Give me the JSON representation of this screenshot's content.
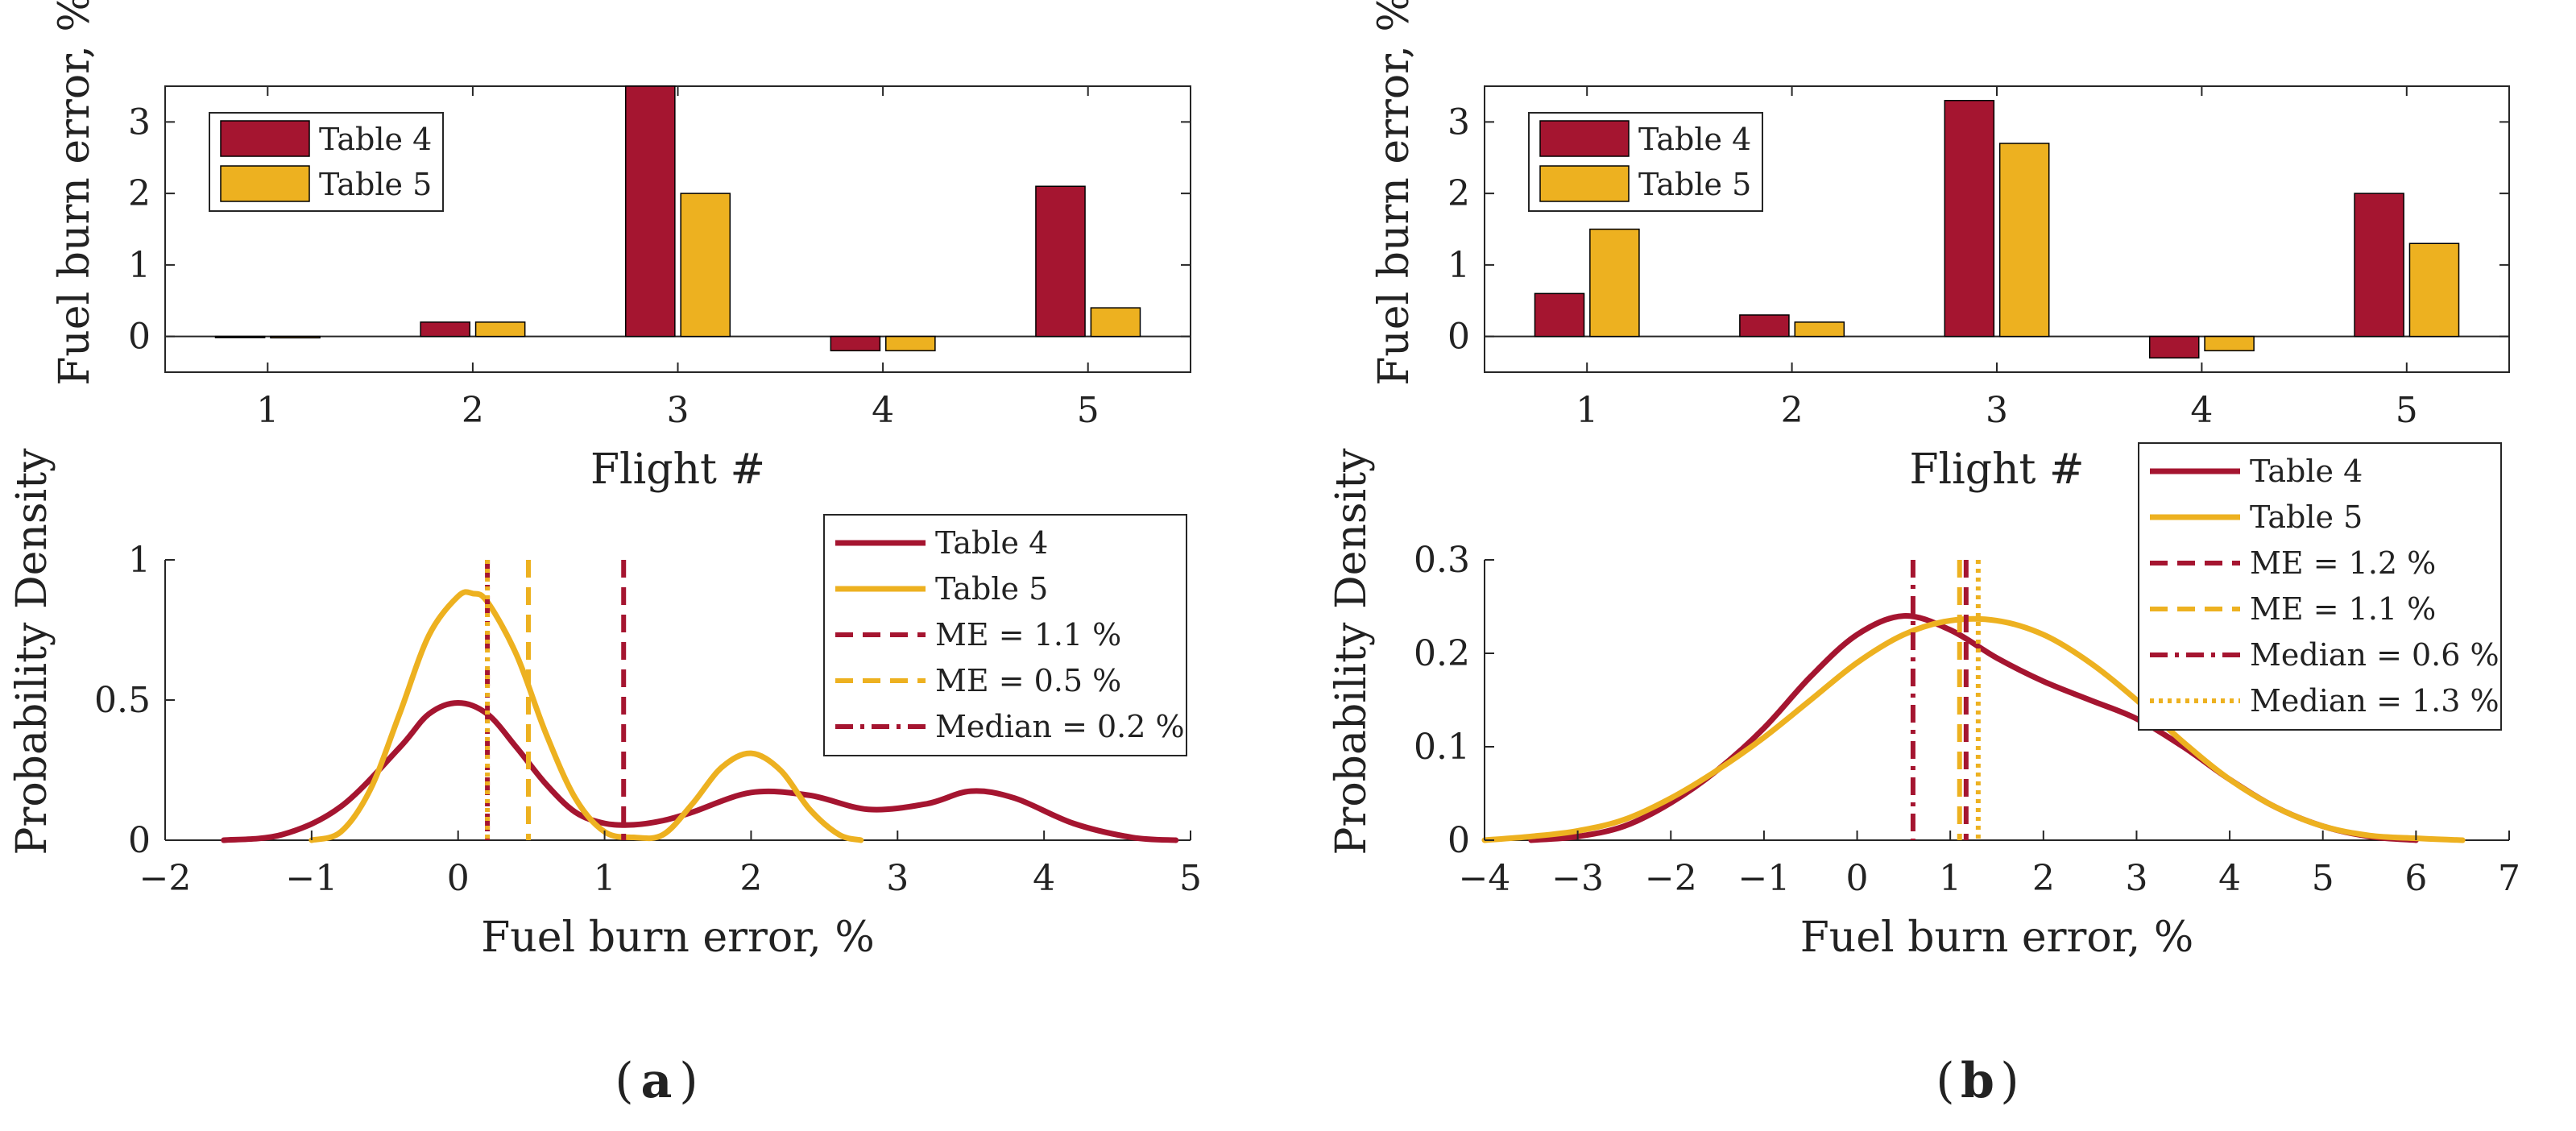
{
  "colors": {
    "table4": "#A51530",
    "table5": "#EDB120",
    "axis": "#262626"
  },
  "captions": {
    "a_letter": "a",
    "b_letter": "b"
  },
  "chart_data": [
    {
      "id": "a_top",
      "type": "bar",
      "panel": "a",
      "categories": [
        "1",
        "2",
        "3",
        "4",
        "5"
      ],
      "series": [
        {
          "name": "Table 4",
          "values": [
            0.0,
            0.2,
            3.5,
            -0.2,
            2.1
          ]
        },
        {
          "name": "Table 5",
          "values": [
            -0.02,
            0.2,
            2.0,
            -0.2,
            0.4
          ]
        }
      ],
      "xlabel": "Flight #",
      "ylabel": "Fuel burn error, %",
      "ylim": [
        -0.5,
        3.5
      ],
      "yticks": [
        "0",
        "1",
        "2",
        "3"
      ],
      "legend": [
        "Table 4",
        "Table 5"
      ],
      "legend_position": "top-left"
    },
    {
      "id": "b_top",
      "type": "bar",
      "panel": "b",
      "categories": [
        "1",
        "2",
        "3",
        "4",
        "5"
      ],
      "series": [
        {
          "name": "Table 4",
          "values": [
            0.6,
            0.3,
            3.3,
            -0.3,
            2.0
          ]
        },
        {
          "name": "Table 5",
          "values": [
            1.5,
            0.2,
            2.7,
            -0.2,
            1.3
          ]
        }
      ],
      "xlabel": "Flight #",
      "ylabel": "Fuel burn error, %",
      "ylim": [
        -0.5,
        3.5
      ],
      "yticks": [
        "0",
        "1",
        "2",
        "3"
      ],
      "legend": [
        "Table 4",
        "Table 5"
      ],
      "legend_position": "top-left"
    },
    {
      "id": "a_bottom",
      "type": "line",
      "panel": "a",
      "series": [
        {
          "name": "Table 4",
          "x": [
            -1.6,
            -1.2,
            -0.8,
            -0.4,
            -0.2,
            0,
            0.2,
            0.4,
            0.6,
            0.8,
            1.0,
            1.2,
            1.4,
            1.6,
            2.0,
            2.4,
            2.8,
            3.2,
            3.5,
            3.8,
            4.2,
            4.6,
            4.9
          ],
          "y": [
            0.0,
            0.02,
            0.12,
            0.33,
            0.45,
            0.49,
            0.45,
            0.33,
            0.2,
            0.1,
            0.06,
            0.055,
            0.07,
            0.1,
            0.17,
            0.16,
            0.11,
            0.13,
            0.175,
            0.15,
            0.06,
            0.01,
            0.0
          ]
        },
        {
          "name": "Table 5",
          "x": [
            -1.0,
            -0.8,
            -0.6,
            -0.4,
            -0.2,
            0,
            0.1,
            0.2,
            0.4,
            0.6,
            0.8,
            1.0,
            1.2,
            1.4,
            1.6,
            1.8,
            2.0,
            2.2,
            2.4,
            2.6,
            2.75
          ],
          "y": [
            0.0,
            0.03,
            0.18,
            0.45,
            0.73,
            0.87,
            0.88,
            0.85,
            0.66,
            0.38,
            0.15,
            0.03,
            0.01,
            0.02,
            0.13,
            0.26,
            0.31,
            0.25,
            0.11,
            0.02,
            0.0
          ]
        }
      ],
      "vlines": [
        {
          "label": "ME = 1.1 %",
          "x": 1.13,
          "color_key": "table4",
          "style": "dashed"
        },
        {
          "label": "ME = 0.5 %",
          "x": 0.48,
          "color_key": "table5",
          "style": "dashed"
        },
        {
          "label": "Median = 0.2 %",
          "x": 0.2,
          "color_key": "table4",
          "style": "dashdot"
        },
        {
          "x": 0.2,
          "color_key": "table5",
          "style": "dotted"
        }
      ],
      "legend": [
        "Table 4",
        "Table 5",
        "ME = 1.1 %",
        "ME = 0.5 %",
        "Median = 0.2 %"
      ],
      "xlabel": "Fuel burn error, %",
      "ylabel": "Probability Density",
      "xlim": [
        -2,
        5
      ],
      "ylim": [
        0,
        1
      ],
      "xticks": [
        "−2",
        "−1",
        "0",
        "1",
        "2",
        "3",
        "4",
        "5"
      ],
      "yticks": [
        "0",
        "0.5",
        "1"
      ],
      "legend_position": "top-right"
    },
    {
      "id": "b_bottom",
      "type": "line",
      "panel": "b",
      "series": [
        {
          "name": "Table 4",
          "x": [
            -3.5,
            -3,
            -2.5,
            -2,
            -1.5,
            -1,
            -0.5,
            0,
            0.5,
            1.0,
            1.5,
            2.0,
            2.5,
            3.0,
            3.5,
            4.0,
            4.5,
            5.0,
            5.5,
            6.0
          ],
          "y": [
            0.0,
            0.004,
            0.015,
            0.04,
            0.075,
            0.12,
            0.175,
            0.22,
            0.24,
            0.225,
            0.195,
            0.17,
            0.15,
            0.13,
            0.1,
            0.065,
            0.035,
            0.015,
            0.004,
            0.0
          ]
        },
        {
          "name": "Table 5",
          "x": [
            -4.0,
            -3.5,
            -3,
            -2.5,
            -2,
            -1.5,
            -1,
            -0.5,
            0,
            0.5,
            1.0,
            1.5,
            2.0,
            2.5,
            3.0,
            3.5,
            4.0,
            4.5,
            5.0,
            5.5,
            6.0,
            6.5
          ],
          "y": [
            0.0,
            0.004,
            0.01,
            0.022,
            0.045,
            0.075,
            0.11,
            0.15,
            0.19,
            0.22,
            0.235,
            0.235,
            0.22,
            0.19,
            0.15,
            0.105,
            0.065,
            0.035,
            0.015,
            0.005,
            0.002,
            0.0
          ]
        }
      ],
      "vlines": [
        {
          "label": "ME = 1.2 %",
          "x": 1.17,
          "color_key": "table4",
          "style": "dashed"
        },
        {
          "label": "ME = 1.1 %",
          "x": 1.1,
          "color_key": "table5",
          "style": "dashed"
        },
        {
          "label": "Median = 0.6 %",
          "x": 0.6,
          "color_key": "table4",
          "style": "dashdot"
        },
        {
          "label": "Median = 1.3 %",
          "x": 1.3,
          "color_key": "table5",
          "style": "dotted"
        }
      ],
      "legend": [
        "Table 4",
        "Table 5",
        "ME = 1.2 %",
        "ME = 1.1 %",
        "Median = 0.6 %",
        "Median = 1.3 %"
      ],
      "xlabel": "Fuel burn error, %",
      "ylabel": "Probability Density",
      "xlim": [
        -4,
        7
      ],
      "ylim": [
        0,
        0.3
      ],
      "xticks": [
        "−4",
        "−3",
        "−2",
        "−1",
        "0",
        "1",
        "2",
        "3",
        "4",
        "5",
        "6",
        "7"
      ],
      "yticks": [
        "0",
        "0.1",
        "0.2",
        "0.3"
      ],
      "legend_position": "top-right"
    }
  ]
}
